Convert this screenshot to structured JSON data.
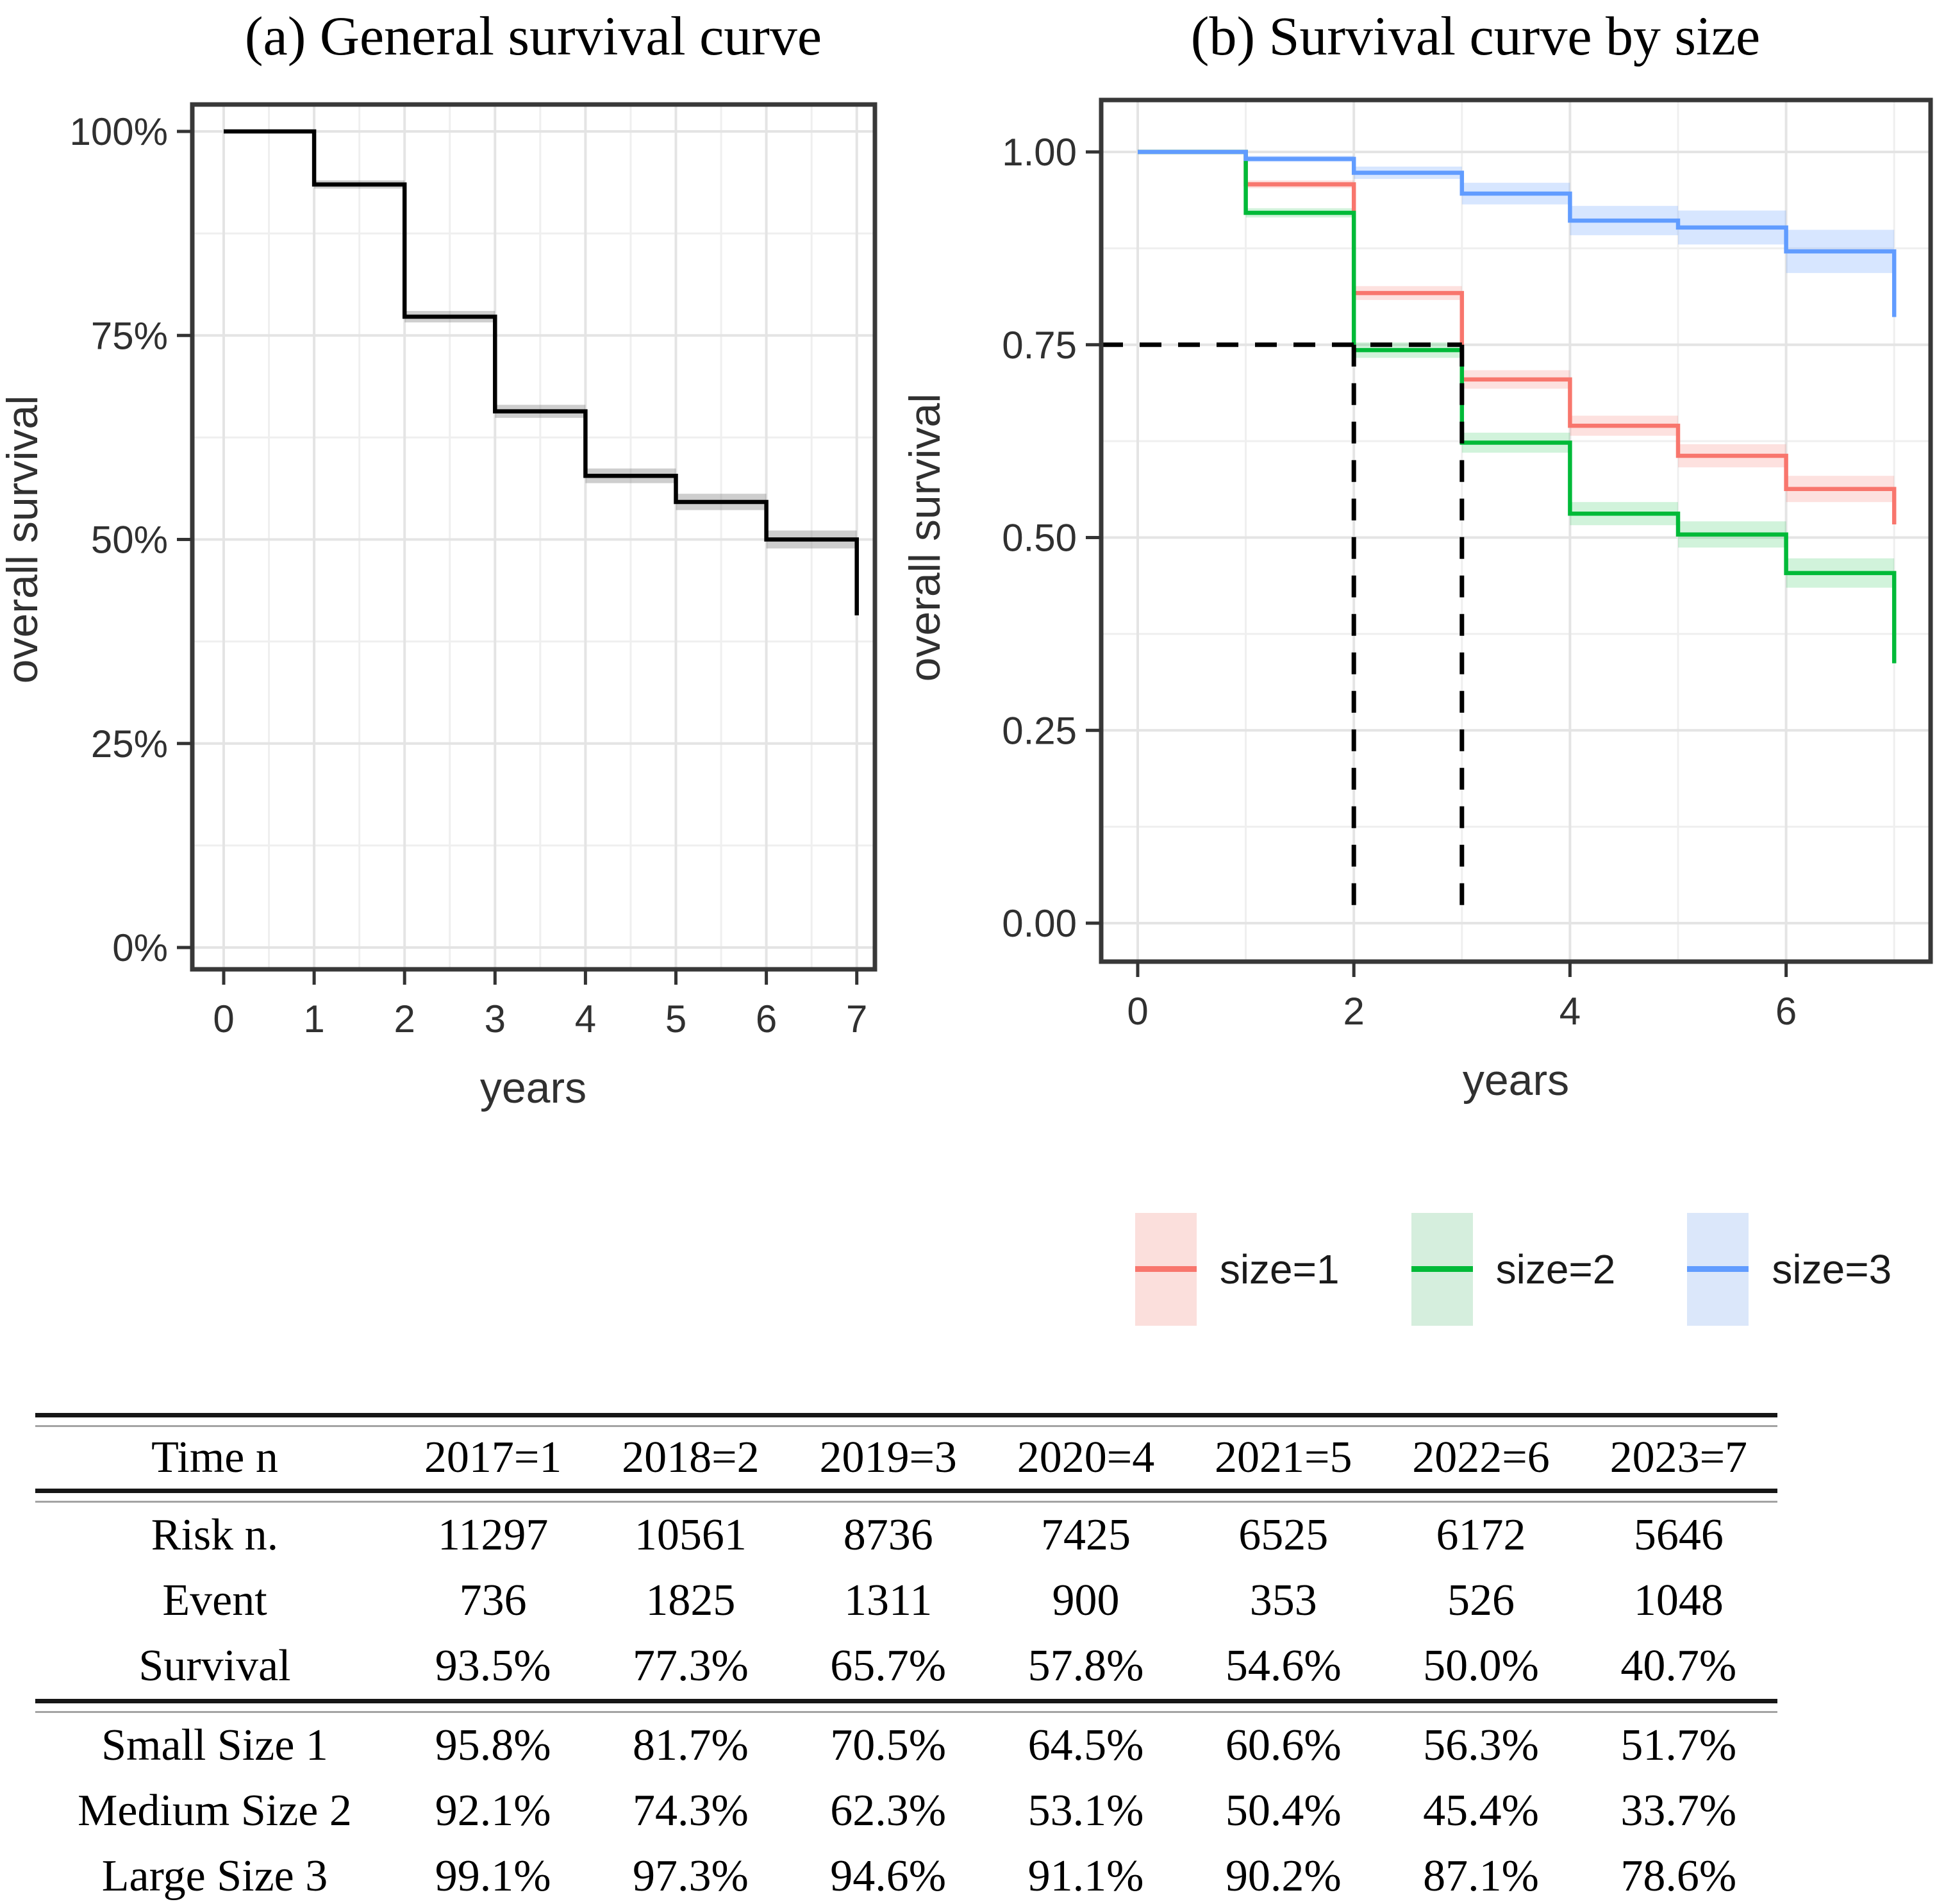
{
  "chart_data": [
    {
      "type": "line",
      "subtype": "kaplan_meier_step",
      "panel": "a",
      "title": "(a) General survival curve",
      "xlabel": "years",
      "ylabel": "overall survival",
      "xlim": [
        0,
        7
      ],
      "ylim": [
        0,
        1
      ],
      "grid": "on",
      "xtick_values": [
        0,
        1,
        2,
        3,
        4,
        5,
        6,
        7
      ],
      "xtick_labels": [
        "0",
        "1",
        "2",
        "3",
        "4",
        "5",
        "6",
        "7"
      ],
      "x_minor": [
        0.5,
        1.5,
        2.5,
        3.5,
        4.5,
        5.5,
        6.5
      ],
      "ytick_values": [
        1,
        0.75,
        0.5,
        0.25,
        0
      ],
      "ytick_labels": [
        "100%",
        "75%",
        "50%",
        "25%",
        "0%"
      ],
      "y_minor": [
        0.875,
        0.625,
        0.375,
        0.125
      ],
      "series": [
        {
          "name": "overall",
          "line_color": "#000000",
          "ci_fill": "rgba(125,125,125,0.38)",
          "segment_start_times": [
            0,
            1,
            2,
            3,
            4,
            5,
            6
          ],
          "segment_values": [
            1.0,
            0.935,
            0.773,
            0.657,
            0.578,
            0.546,
            0.5
          ],
          "final_time": 7,
          "final_value": 0.407,
          "ci_half_width": [
            0,
            0.005,
            0.007,
            0.008,
            0.009,
            0.01,
            0.011
          ]
        }
      ]
    },
    {
      "type": "line",
      "subtype": "kaplan_meier_step",
      "panel": "b",
      "title": "(b) Survival curve by size",
      "xlabel": "years",
      "ylabel": "overall survival",
      "xlim": [
        0,
        7
      ],
      "ylim": [
        0,
        1
      ],
      "grid": "on",
      "legend_position": "bottom",
      "xtick_values": [
        0,
        2,
        4,
        6
      ],
      "xtick_labels": [
        "0",
        "2",
        "4",
        "6"
      ],
      "x_minor": [
        1,
        3,
        5,
        7
      ],
      "ytick_values": [
        1,
        0.75,
        0.5,
        0.25,
        0
      ],
      "ytick_labels": [
        "1.00",
        "0.75",
        "0.50",
        "0.25",
        "0.00"
      ],
      "y_minor": [
        0.875,
        0.625,
        0.375,
        0.125
      ],
      "series": [
        {
          "name": "size=1",
          "line_color": "#F8766D",
          "ci_fill": "rgba(248,118,109,0.22)",
          "segment_start_times": [
            0,
            1,
            2,
            3,
            4,
            5,
            6
          ],
          "segment_values": [
            1.0,
            0.958,
            0.817,
            0.705,
            0.645,
            0.606,
            0.563
          ],
          "final_time": 7,
          "final_value": 0.517,
          "ci_half_width": [
            0,
            0.005,
            0.009,
            0.012,
            0.013,
            0.015,
            0.017
          ]
        },
        {
          "name": "size=2",
          "line_color": "#00BA38",
          "ci_fill": "rgba(0,186,56,0.18)",
          "segment_start_times": [
            0,
            1,
            2,
            3,
            4,
            5,
            6
          ],
          "segment_values": [
            1.0,
            0.921,
            0.743,
            0.623,
            0.531,
            0.504,
            0.454
          ],
          "final_time": 7,
          "final_value": 0.337,
          "ci_half_width": [
            0,
            0.006,
            0.01,
            0.013,
            0.015,
            0.017,
            0.019
          ]
        },
        {
          "name": "size=3",
          "line_color": "#619CFF",
          "ci_fill": "rgba(97,156,255,0.25)",
          "segment_start_times": [
            0,
            1,
            2,
            3,
            4,
            5,
            6
          ],
          "segment_values": [
            1.0,
            0.991,
            0.973,
            0.946,
            0.911,
            0.902,
            0.871
          ],
          "final_time": 7,
          "final_value": 0.786,
          "ci_half_width": [
            0,
            0.004,
            0.008,
            0.014,
            0.019,
            0.022,
            0.028
          ]
        }
      ],
      "reference_lines": {
        "style": "dashed",
        "color": "#000000",
        "horizontal_y": 0.75,
        "horizontal_x_extent": [
          0,
          3
        ],
        "vertical_x": [
          2,
          3
        ],
        "vertical_y_extent": [
          0.012,
          0.75
        ]
      }
    },
    {
      "type": "table",
      "col_headers": [
        "Time n",
        "2017=1",
        "2018=2",
        "2019=3",
        "2020=4",
        "2021=5",
        "2022=6",
        "2023=7"
      ],
      "sections": [
        {
          "rows": [
            {
              "label": "Risk n.",
              "values": [
                "11297",
                "10561",
                "8736",
                "7425",
                "6525",
                "6172",
                "5646"
              ]
            },
            {
              "label": "Event",
              "values": [
                "736",
                "1825",
                "1311",
                "900",
                "353",
                "526",
                "1048"
              ]
            },
            {
              "label": "Survival",
              "values": [
                "93.5%",
                "77.3%",
                "65.7%",
                "57.8%",
                "54.6%",
                "50.0%",
                "40.7%"
              ]
            }
          ]
        },
        {
          "rows": [
            {
              "label": "Small Size 1",
              "values": [
                "95.8%",
                "81.7%",
                "70.5%",
                "64.5%",
                "60.6%",
                "56.3%",
                "51.7%"
              ]
            },
            {
              "label": "Medium Size 2",
              "values": [
                "92.1%",
                "74.3%",
                "62.3%",
                "53.1%",
                "50.4%",
                "45.4%",
                "33.7%"
              ]
            },
            {
              "label": "Large Size 3",
              "values": [
                "99.1%",
                "97.3%",
                "94.6%",
                "91.1%",
                "90.2%",
                "87.1%",
                "78.6%"
              ]
            }
          ]
        }
      ]
    }
  ],
  "legend": {
    "items": [
      {
        "label": "size=1",
        "line_color": "#F8766D",
        "fill": "#FBDFDC"
      },
      {
        "label": "size=2",
        "line_color": "#00BA38",
        "fill": "#D5EEDD"
      },
      {
        "label": "size=3",
        "line_color": "#619CFF",
        "fill": "#DBE7FA"
      }
    ]
  },
  "colors": {
    "grid_major": "#E4E4E4",
    "grid_minor": "#EFEFEF",
    "panel_border": "#383838",
    "tick": "#333333",
    "axis_text": "#303030",
    "dashed_reference": "#000000"
  }
}
